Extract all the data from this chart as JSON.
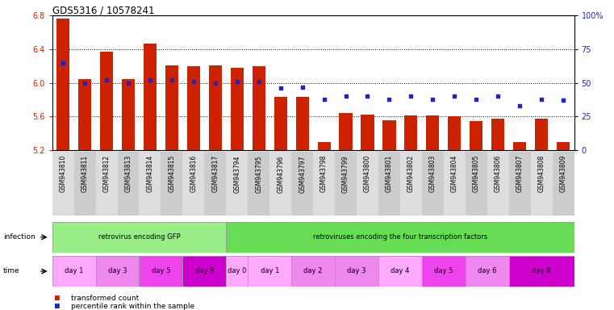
{
  "title": "GDS5316 / 10578241",
  "samples": [
    "GSM943810",
    "GSM943811",
    "GSM943812",
    "GSM943813",
    "GSM943814",
    "GSM943815",
    "GSM943816",
    "GSM943817",
    "GSM943794",
    "GSM943795",
    "GSM943796",
    "GSM943797",
    "GSM943798",
    "GSM943799",
    "GSM943800",
    "GSM943801",
    "GSM943802",
    "GSM943803",
    "GSM943804",
    "GSM943805",
    "GSM943806",
    "GSM943807",
    "GSM943808",
    "GSM943809"
  ],
  "bar_values": [
    6.76,
    6.05,
    6.37,
    6.05,
    6.47,
    6.21,
    6.2,
    6.21,
    6.18,
    6.2,
    5.83,
    5.83,
    5.3,
    5.64,
    5.62,
    5.56,
    5.61,
    5.61,
    5.6,
    5.55,
    5.58,
    5.3,
    5.58,
    5.3
  ],
  "percentile_values": [
    65,
    50,
    52,
    50,
    52,
    52,
    51,
    50,
    51,
    51,
    46,
    47,
    38,
    40,
    40,
    38,
    40,
    38,
    40,
    38,
    40,
    33,
    38,
    37
  ],
  "ylim_left": [
    5.2,
    6.8
  ],
  "ylim_right": [
    0,
    100
  ],
  "yticks_left": [
    5.2,
    5.6,
    6.0,
    6.4,
    6.8
  ],
  "yticks_right": [
    0,
    25,
    50,
    75,
    100
  ],
  "ytick_right_labels": [
    "0",
    "25",
    "50",
    "75",
    "100%"
  ],
  "bar_color": "#CC2200",
  "dot_color": "#2222CC",
  "grid_values": [
    5.6,
    6.0,
    6.4
  ],
  "infection_groups": [
    {
      "label": "retrovirus encoding GFP",
      "start": 0,
      "end": 8,
      "color": "#99EE88"
    },
    {
      "label": "retroviruses encoding the four transcription factors",
      "start": 8,
      "end": 24,
      "color": "#66DD55"
    }
  ],
  "time_groups": [
    {
      "label": "day 1",
      "start": 0,
      "end": 2,
      "color": "#FFAAFF"
    },
    {
      "label": "day 3",
      "start": 2,
      "end": 4,
      "color": "#EE88EE"
    },
    {
      "label": "day 5",
      "start": 4,
      "end": 6,
      "color": "#EE44EE"
    },
    {
      "label": "day 8",
      "start": 6,
      "end": 8,
      "color": "#CC00CC"
    },
    {
      "label": "day 0",
      "start": 8,
      "end": 9,
      "color": "#FFAAFF"
    },
    {
      "label": "day 1",
      "start": 9,
      "end": 11,
      "color": "#FFAAFF"
    },
    {
      "label": "day 2",
      "start": 11,
      "end": 13,
      "color": "#EE88EE"
    },
    {
      "label": "day 3",
      "start": 13,
      "end": 15,
      "color": "#EE88EE"
    },
    {
      "label": "day 4",
      "start": 15,
      "end": 17,
      "color": "#FFAAFF"
    },
    {
      "label": "day 5",
      "start": 17,
      "end": 19,
      "color": "#EE44EE"
    },
    {
      "label": "day 6",
      "start": 19,
      "end": 21,
      "color": "#EE88EE"
    },
    {
      "label": "day 8",
      "start": 21,
      "end": 24,
      "color": "#CC00CC"
    }
  ],
  "xtick_bg": "#DDDDDD",
  "legend_bar_label": "transformed count",
  "legend_dot_label": "percentile rank within the sample"
}
